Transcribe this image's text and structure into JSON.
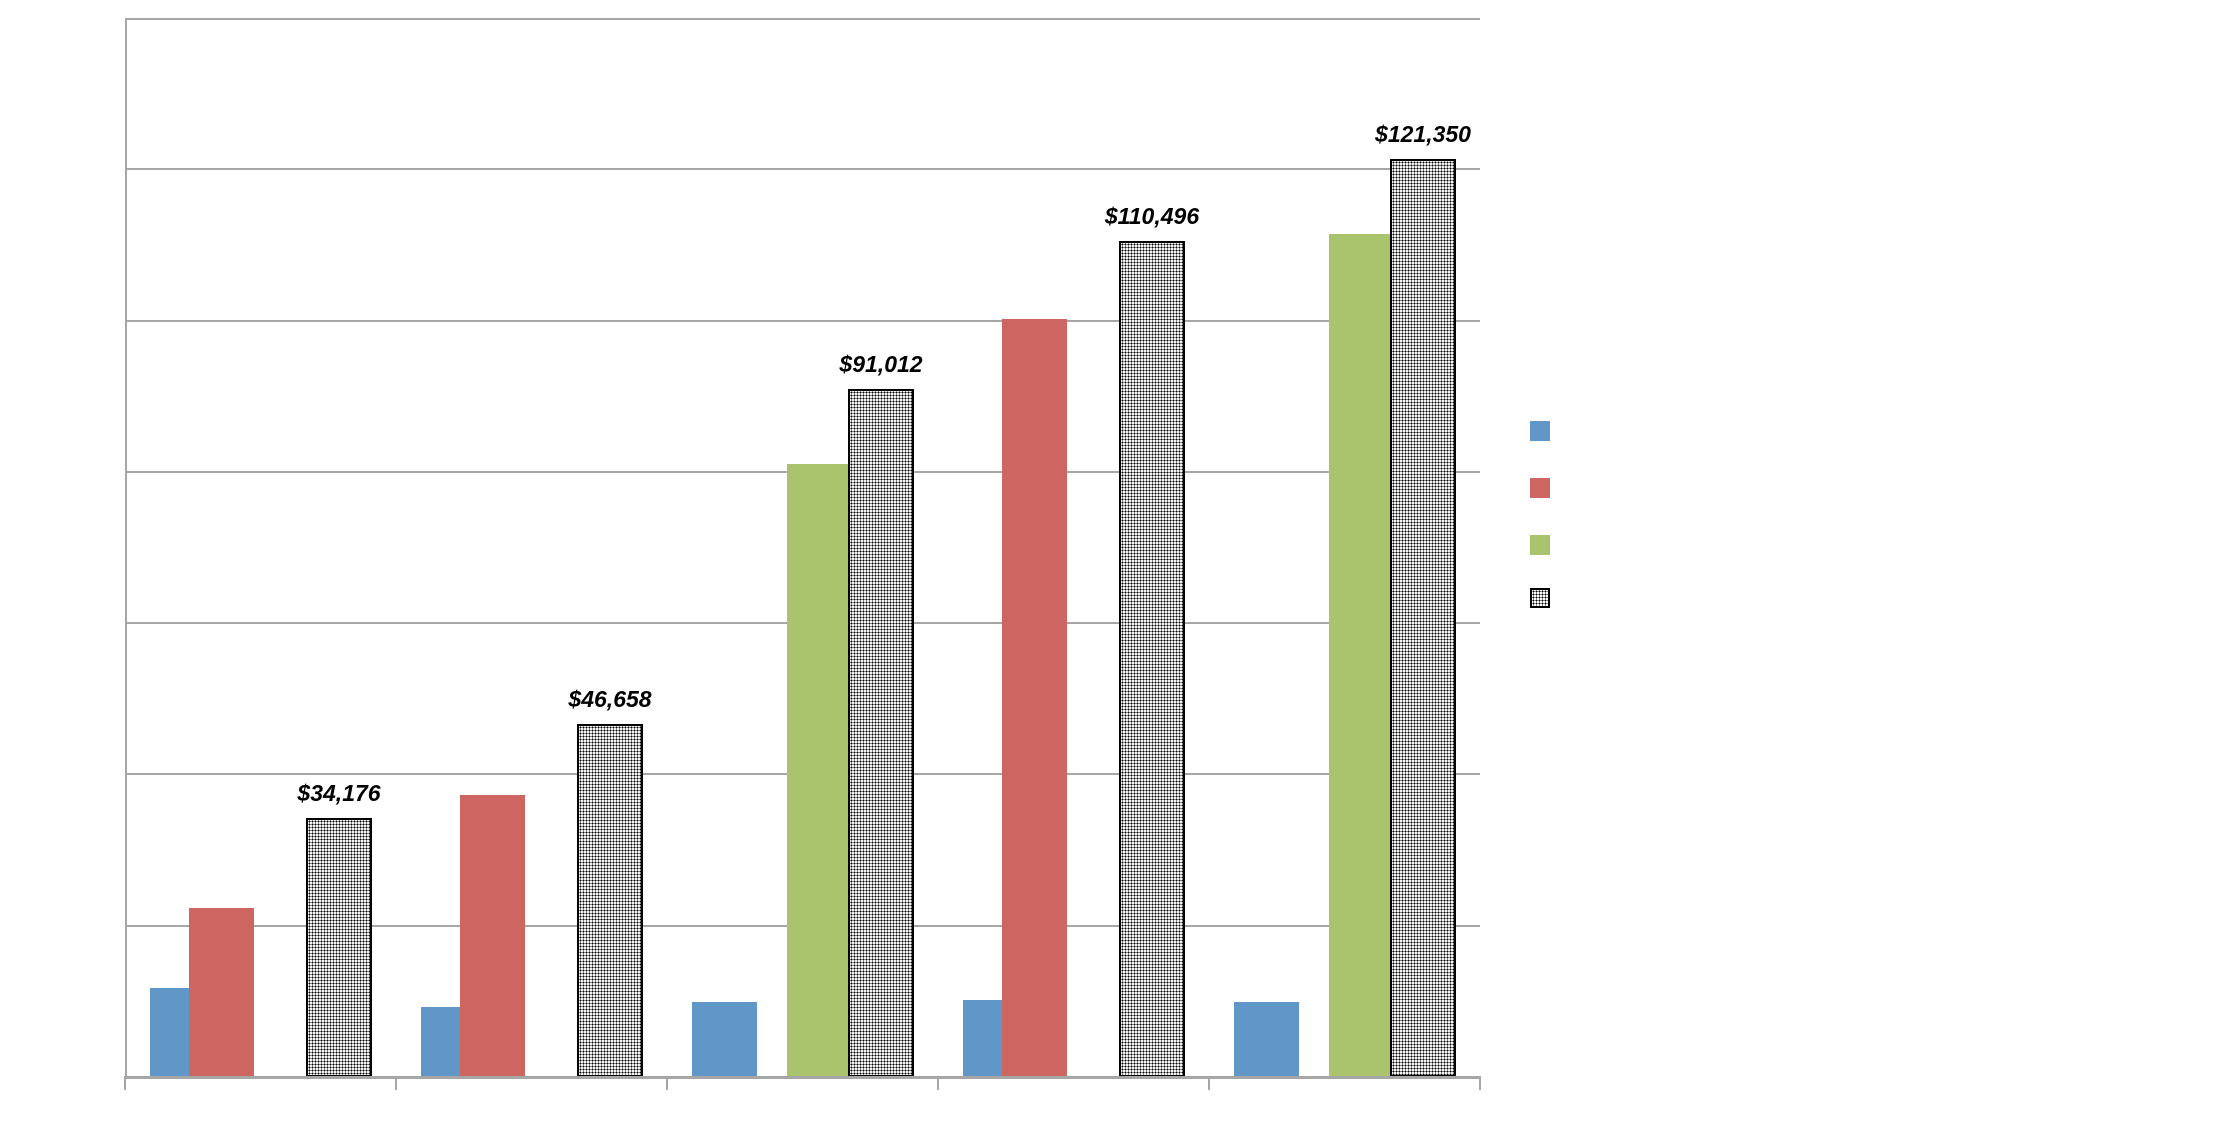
{
  "chart_data": {
    "type": "bar",
    "title": "",
    "xlabel": "",
    "ylabel": "",
    "ylim": [
      0,
      140000
    ],
    "y_gridline_step": 20000,
    "grid": true,
    "legend_position": "right",
    "categories": [
      "",
      "",
      "",
      "",
      ""
    ],
    "series": [
      {
        "name": "",
        "color": "#6196c9",
        "values": [
          11800,
          9200,
          9900,
          10200,
          9900
        ]
      },
      {
        "name": "",
        "color": "#cd6660",
        "values": [
          22300,
          37300,
          null,
          100200,
          null
        ]
      },
      {
        "name": "",
        "color": "#aac46d",
        "values": [
          null,
          null,
          81000,
          null,
          111400
        ]
      },
      {
        "name": "",
        "color": "pattern-dotted",
        "values": [
          34176,
          46658,
          91012,
          110496,
          121350
        ]
      }
    ],
    "data_labels": [
      "$34,176",
      "$46,658",
      "$91,012",
      "$110,496",
      "$121,350"
    ]
  },
  "legend": {
    "items": [
      {
        "label": "",
        "color": "#6196c9"
      },
      {
        "label": "",
        "color": "#cd6660"
      },
      {
        "label": "",
        "color": "#aac46d"
      },
      {
        "label": "",
        "color": "pattern-dotted"
      }
    ]
  }
}
